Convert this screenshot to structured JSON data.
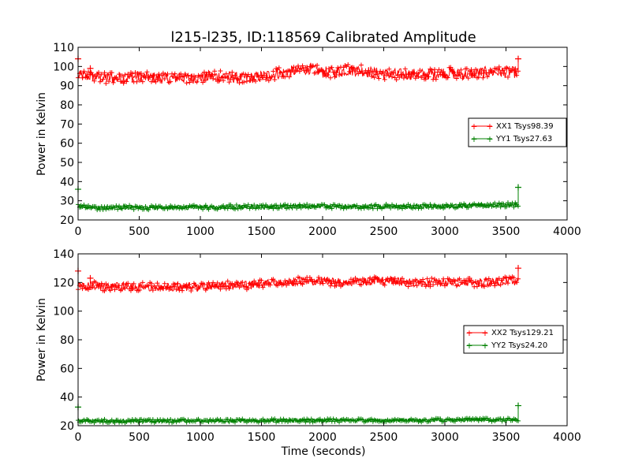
{
  "chart_data": [
    {
      "type": "line",
      "title": "l215-l235, ID:118569 Calibrated Amplitude",
      "xlabel": "",
      "ylabel": "Power in Kelvin",
      "xlim": [
        0,
        4000
      ],
      "ylim": [
        20,
        110
      ],
      "x_ticks": [
        0,
        500,
        1000,
        1500,
        2000,
        2500,
        3000,
        3500,
        4000
      ],
      "y_ticks": [
        20,
        30,
        40,
        50,
        60,
        70,
        80,
        90,
        100,
        110
      ],
      "grid": false,
      "legend_position": "right",
      "marker": "+",
      "series": [
        {
          "name": "XX1 Tsys98.39",
          "color": "#ff0000",
          "x": [
            0,
            100,
            200,
            300,
            400,
            500,
            600,
            700,
            800,
            900,
            1000,
            1100,
            1200,
            1300,
            1400,
            1500,
            1600,
            1700,
            1800,
            1900,
            2000,
            2100,
            2200,
            2300,
            2400,
            2500,
            2600,
            2700,
            2800,
            2900,
            3000,
            3100,
            3200,
            3300,
            3400,
            3500,
            3600
          ],
          "y": [
            95,
            95,
            94,
            94,
            94,
            95,
            94,
            94,
            94,
            94,
            94,
            95,
            95,
            94,
            94,
            95,
            96,
            97,
            98,
            99,
            97,
            97,
            98,
            98,
            97,
            96,
            96,
            96,
            96,
            96,
            97,
            96,
            96,
            97,
            97,
            97,
            97
          ],
          "band": 3,
          "outliers": [
            [
              0,
              104
            ],
            [
              100,
              99
            ],
            [
              3600,
              104
            ]
          ]
        },
        {
          "name": "YY1 Tsys27.63",
          "color": "#008000",
          "x": [
            0,
            100,
            200,
            300,
            400,
            500,
            600,
            700,
            800,
            900,
            1000,
            1100,
            1200,
            1300,
            1400,
            1500,
            1600,
            1700,
            1800,
            1900,
            2000,
            2100,
            2200,
            2300,
            2400,
            2500,
            2600,
            2700,
            2800,
            2900,
            3000,
            3100,
            3200,
            3300,
            3400,
            3500,
            3600
          ],
          "y": [
            27,
            26.5,
            26.5,
            26.5,
            26.5,
            26.5,
            26.5,
            26.5,
            26.5,
            26.5,
            26.5,
            26.5,
            26.7,
            26.7,
            26.8,
            26.8,
            27,
            27,
            27,
            27,
            27,
            27,
            27,
            27,
            27,
            27,
            27,
            27,
            27,
            27,
            27.2,
            27.3,
            27.4,
            27.5,
            27.6,
            27.8,
            28
          ],
          "band": 1.2,
          "outliers": [
            [
              0,
              36
            ],
            [
              3600,
              37
            ]
          ]
        }
      ]
    },
    {
      "type": "line",
      "title": "",
      "xlabel": "Time (seconds)",
      "ylabel": "Power in Kelvin",
      "xlim": [
        0,
        4000
      ],
      "ylim": [
        20,
        140
      ],
      "x_ticks": [
        0,
        500,
        1000,
        1500,
        2000,
        2500,
        3000,
        3500,
        4000
      ],
      "y_ticks": [
        20,
        40,
        60,
        80,
        100,
        120,
        140
      ],
      "grid": false,
      "legend_position": "right",
      "marker": "+",
      "series": [
        {
          "name": "XX2 Tsys129.21",
          "color": "#ff0000",
          "x": [
            0,
            100,
            200,
            300,
            400,
            500,
            600,
            700,
            800,
            900,
            1000,
            1100,
            1200,
            1300,
            1400,
            1500,
            1600,
            1700,
            1800,
            1900,
            2000,
            2100,
            2200,
            2300,
            2400,
            2500,
            2600,
            2700,
            2800,
            2900,
            3000,
            3100,
            3200,
            3300,
            3400,
            3500,
            3600
          ],
          "y": [
            118,
            118,
            117,
            117,
            117,
            117,
            117,
            117,
            117,
            117,
            117,
            118,
            118,
            118,
            118,
            119,
            120,
            120,
            121,
            121,
            121,
            120,
            120,
            121,
            121,
            121,
            121,
            120,
            120,
            120,
            120,
            120,
            120,
            120,
            120,
            121,
            121
          ],
          "band": 3,
          "outliers": [
            [
              0,
              128
            ],
            [
              100,
              123
            ],
            [
              3600,
              130
            ]
          ]
        },
        {
          "name": "YY2 Tsys24.20",
          "color": "#008000",
          "x": [
            0,
            100,
            200,
            300,
            400,
            500,
            600,
            700,
            800,
            900,
            1000,
            1100,
            1200,
            1300,
            1400,
            1500,
            1600,
            1700,
            1800,
            1900,
            2000,
            2100,
            2200,
            2300,
            2400,
            2500,
            2600,
            2700,
            2800,
            2900,
            3000,
            3100,
            3200,
            3300,
            3400,
            3500,
            3600
          ],
          "y": [
            23.5,
            23.3,
            23.3,
            23.3,
            23.3,
            23.3,
            23.3,
            23.3,
            23.3,
            23.4,
            23.4,
            23.4,
            23.4,
            23.5,
            23.5,
            23.5,
            23.6,
            23.6,
            23.6,
            23.6,
            23.6,
            23.7,
            23.7,
            23.7,
            23.7,
            23.8,
            23.8,
            23.8,
            23.8,
            23.9,
            23.9,
            24,
            24,
            24,
            24.1,
            24.2,
            24.2
          ],
          "band": 1.2,
          "outliers": [
            [
              0,
              33
            ],
            [
              3600,
              34
            ]
          ]
        }
      ]
    }
  ]
}
